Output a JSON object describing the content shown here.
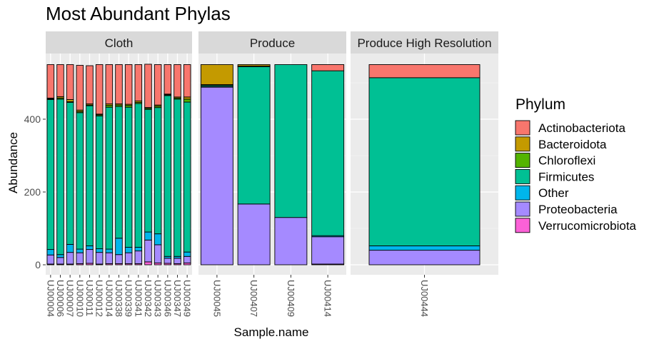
{
  "chart_data": {
    "type": "bar",
    "stacked": true,
    "title": "Most Abundant Phylas",
    "xlabel": "Sample.name",
    "ylabel": "Abundance",
    "y_ticks": [
      0,
      200,
      400
    ],
    "ylim": [
      -20,
      570
    ],
    "legend": {
      "title": "Phylum",
      "placement": "right",
      "entries": [
        {
          "name": "Actinobacteriota",
          "color": "#F8766D"
        },
        {
          "name": "Bacteroidota",
          "color": "#C49A00"
        },
        {
          "name": "Chloroflexi",
          "color": "#53B400"
        },
        {
          "name": "Firmicutes",
          "color": "#00C094"
        },
        {
          "name": "Other",
          "color": "#00B6EB"
        },
        {
          "name": "Proteobacteria",
          "color": "#A58AFF"
        },
        {
          "name": "Verrucomicrobiota",
          "color": "#FB61D7"
        }
      ]
    },
    "panels": [
      {
        "label": "Cloth",
        "samples": [
          {
            "name": "UJ00004",
            "values": {
              "Verrucomicrobiota": 2,
              "Proteobacteria": 25,
              "Other": 15,
              "Firmicutes": 412,
              "Chloroflexi": 2,
              "Bacteroidota": 2,
              "Actinobacteriota": 92
            }
          },
          {
            "name": "UJ00006",
            "values": {
              "Verrucomicrobiota": 2,
              "Proteobacteria": 18,
              "Other": 8,
              "Firmicutes": 427,
              "Chloroflexi": 3,
              "Bacteroidota": 4,
              "Actinobacteriota": 88
            }
          },
          {
            "name": "UJ00007",
            "values": {
              "Verrucomicrobiota": 2,
              "Proteobacteria": 32,
              "Other": 22,
              "Firmicutes": 390,
              "Chloroflexi": 2,
              "Bacteroidota": 6,
              "Actinobacteriota": 96
            }
          },
          {
            "name": "UJ00010",
            "values": {
              "Verrucomicrobiota": 3,
              "Proteobacteria": 30,
              "Other": 10,
              "Firmicutes": 375,
              "Chloroflexi": 3,
              "Bacteroidota": 4,
              "Actinobacteriota": 123
            }
          },
          {
            "name": "UJ00011",
            "values": {
              "Verrucomicrobiota": 4,
              "Proteobacteria": 38,
              "Other": 10,
              "Firmicutes": 385,
              "Chloroflexi": 2,
              "Bacteroidota": 3,
              "Actinobacteriota": 105
            }
          },
          {
            "name": "UJ00012",
            "values": {
              "Verrucomicrobiota": 2,
              "Proteobacteria": 32,
              "Other": 10,
              "Firmicutes": 365,
              "Chloroflexi": 3,
              "Bacteroidota": 2,
              "Actinobacteriota": 136
            }
          },
          {
            "name": "UJ00014",
            "values": {
              "Verrucomicrobiota": 3,
              "Proteobacteria": 30,
              "Other": 10,
              "Firmicutes": 390,
              "Chloroflexi": 5,
              "Bacteroidota": 4,
              "Actinobacteriota": 108
            }
          },
          {
            "name": "UJ00338",
            "values": {
              "Verrucomicrobiota": 3,
              "Proteobacteria": 25,
              "Other": 45,
              "Firmicutes": 362,
              "Chloroflexi": 4,
              "Bacteroidota": 3,
              "Actinobacteriota": 108
            }
          },
          {
            "name": "UJ00339",
            "values": {
              "Verrucomicrobiota": 3,
              "Proteobacteria": 30,
              "Other": 15,
              "Firmicutes": 385,
              "Chloroflexi": 5,
              "Bacteroidota": 3,
              "Actinobacteriota": 109
            }
          },
          {
            "name": "UJ00341",
            "values": {
              "Verrucomicrobiota": 3,
              "Proteobacteria": 35,
              "Other": 10,
              "Firmicutes": 395,
              "Chloroflexi": 3,
              "Bacteroidota": 4,
              "Actinobacteriota": 100
            }
          },
          {
            "name": "UJ00342",
            "values": {
              "Verrucomicrobiota": 8,
              "Proteobacteria": 60,
              "Other": 22,
              "Firmicutes": 337,
              "Chloroflexi": 3,
              "Bacteroidota": 2,
              "Actinobacteriota": 119
            }
          },
          {
            "name": "UJ00343",
            "values": {
              "Verrucomicrobiota": 5,
              "Proteobacteria": 50,
              "Other": 30,
              "Firmicutes": 347,
              "Chloroflexi": 4,
              "Bacteroidota": 3,
              "Actinobacteriota": 111
            }
          },
          {
            "name": "UJ00346",
            "values": {
              "Verrucomicrobiota": 4,
              "Proteobacteria": 14,
              "Other": 5,
              "Firmicutes": 442,
              "Chloroflexi": 2,
              "Bacteroidota": 2,
              "Actinobacteriota": 81
            }
          },
          {
            "name": "UJ00347",
            "values": {
              "Verrucomicrobiota": 3,
              "Proteobacteria": 15,
              "Other": 5,
              "Firmicutes": 432,
              "Chloroflexi": 3,
              "Bacteroidota": 3,
              "Actinobacteriota": 89
            }
          },
          {
            "name": "UJ00349",
            "values": {
              "Verrucomicrobiota": 5,
              "Proteobacteria": 18,
              "Other": 12,
              "Firmicutes": 412,
              "Chloroflexi": 8,
              "Bacteroidota": 6,
              "Actinobacteriota": 89
            }
          }
        ]
      },
      {
        "label": "Produce",
        "samples": [
          {
            "name": "UJ00045",
            "values": {
              "Verrucomicrobiota": 0,
              "Proteobacteria": 488,
              "Other": 2,
              "Firmicutes": 3,
              "Chloroflexi": 2,
              "Bacteroidota": 55,
              "Actinobacteriota": 0
            }
          },
          {
            "name": "UJ00407",
            "values": {
              "Verrucomicrobiota": 0,
              "Proteobacteria": 167,
              "Other": 0,
              "Firmicutes": 377,
              "Chloroflexi": 2,
              "Bacteroidota": 4,
              "Actinobacteriota": 0
            }
          },
          {
            "name": "UJ00409",
            "values": {
              "Verrucomicrobiota": 0,
              "Proteobacteria": 130,
              "Other": 0,
              "Firmicutes": 420,
              "Chloroflexi": 0,
              "Bacteroidota": 0,
              "Actinobacteriota": 0
            }
          },
          {
            "name": "UJ00414",
            "values": {
              "Verrucomicrobiota": 2,
              "Proteobacteria": 75,
              "Other": 3,
              "Firmicutes": 453,
              "Chloroflexi": 0,
              "Bacteroidota": 0,
              "Actinobacteriota": 17
            }
          }
        ]
      },
      {
        "label": "Produce High Resolution",
        "samples": [
          {
            "name": "UJ00444",
            "values": {
              "Verrucomicrobiota": 0,
              "Proteobacteria": 40,
              "Other": 12,
              "Firmicutes": 462,
              "Chloroflexi": 0,
              "Bacteroidota": 0,
              "Actinobacteriota": 36
            }
          }
        ]
      }
    ]
  }
}
